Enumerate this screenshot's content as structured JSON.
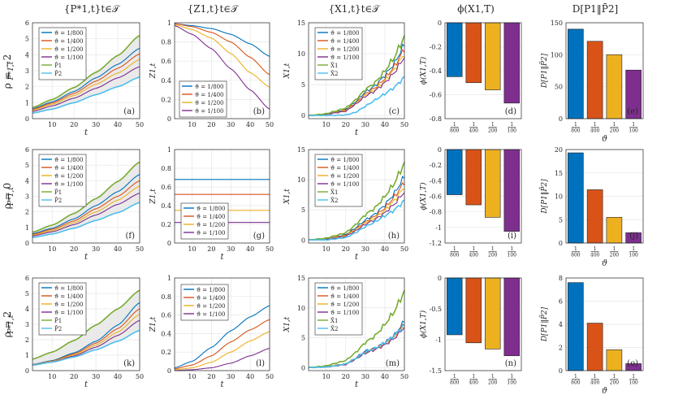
{
  "colors": {
    "blue": "#0072BD",
    "orange": "#D95319",
    "yellow": "#EDB120",
    "purple": "#7E2F8E",
    "green": "#77AC30",
    "cyan": "#4DBEEE",
    "axis": "#262626",
    "grid": "#e6e6e6",
    "band": "#e5e5e5"
  },
  "column_titles": [
    "{P*1,t}t∈𝒯",
    "{Z1,t}t∈𝒯",
    "{X1,t}t∈𝒯",
    "ϕ(X1,T)",
    "D[P1‖P̄2]"
  ],
  "row_labels": [
    "ρ = −2",
    "ρ = 0",
    "ρ = 2"
  ],
  "legends": {
    "p": [
      "ϑ = 1/800",
      "ϑ = 1/400",
      "ϑ = 1/200",
      "ϑ = 1/100",
      "P̄1",
      "P̄2"
    ],
    "z": [
      "ϑ = 1/800",
      "ϑ = 1/400",
      "ϑ = 1/200",
      "ϑ = 1/100"
    ],
    "x": [
      "ϑ = 1/800",
      "ϑ = 1/400",
      "ϑ = 1/200",
      "ϑ = 1/100",
      "X̄1",
      "X̄2"
    ]
  },
  "chart_data": [
    {
      "type": "line",
      "panel": "(a)",
      "title": "{P*1,t}t∈𝒯",
      "xlabel": "t",
      "ylabel": "P*1,t",
      "xlim": [
        1,
        50
      ],
      "ylim": [
        0,
        6
      ],
      "xticks": [
        10,
        20,
        30,
        40,
        50
      ],
      "yticks": [
        0,
        1,
        2,
        3,
        4,
        5,
        6
      ],
      "x": [
        1,
        10,
        20,
        30,
        40,
        50
      ],
      "series": [
        {
          "name": "ϑ = 1/800",
          "values": [
            0.62,
            1.05,
            1.7,
            2.55,
            3.4,
            4.4
          ]
        },
        {
          "name": "ϑ = 1/400",
          "values": [
            0.58,
            0.98,
            1.58,
            2.35,
            3.15,
            4.05
          ]
        },
        {
          "name": "ϑ = 1/200",
          "values": [
            0.52,
            0.9,
            1.45,
            2.15,
            2.85,
            3.7
          ]
        },
        {
          "name": "ϑ = 1/100",
          "values": [
            0.45,
            0.8,
            1.28,
            1.9,
            2.55,
            3.25
          ]
        },
        {
          "name": "P̄1",
          "values": [
            0.7,
            1.2,
            1.95,
            2.9,
            3.95,
            5.2
          ]
        },
        {
          "name": "P̄2",
          "values": [
            0.35,
            0.6,
            1.0,
            1.5,
            2.0,
            2.6
          ]
        }
      ]
    },
    {
      "type": "line",
      "panel": "(b)",
      "title": "{Z1,t}t∈𝒯",
      "xlabel": "",
      "ylabel": "Z1,t",
      "xlim": [
        1,
        50
      ],
      "ylim": [
        0,
        1
      ],
      "xticks": [
        10,
        20,
        30,
        40,
        50
      ],
      "yticks": [
        0,
        0.2,
        0.4,
        0.6,
        0.8,
        1
      ],
      "x": [
        1,
        10,
        20,
        30,
        40,
        50
      ],
      "series": [
        {
          "name": "ϑ = 1/800",
          "values": [
            0.99,
            0.97,
            0.94,
            0.88,
            0.78,
            0.65
          ]
        },
        {
          "name": "ϑ = 1/400",
          "values": [
            0.99,
            0.96,
            0.9,
            0.8,
            0.64,
            0.46
          ]
        },
        {
          "name": "ϑ = 1/200",
          "values": [
            0.98,
            0.93,
            0.84,
            0.68,
            0.48,
            0.33
          ]
        },
        {
          "name": "ϑ = 1/100",
          "values": [
            0.97,
            0.88,
            0.73,
            0.52,
            0.3,
            0.1
          ]
        }
      ]
    },
    {
      "type": "line",
      "panel": "(c)",
      "title": "{X1,t}t∈𝒯",
      "xlabel": "t",
      "ylabel": "X1,t",
      "xlim": [
        1,
        50
      ],
      "ylim": [
        -0.5,
        15
      ],
      "xticks": [
        10,
        20,
        30,
        40,
        50
      ],
      "yticks": [
        0,
        5,
        10,
        15
      ],
      "x": [
        1,
        10,
        20,
        25,
        30,
        35,
        40,
        45,
        50
      ],
      "series": [
        {
          "name": "ϑ = 1/800",
          "values": [
            0,
            0.2,
            1.0,
            2.2,
            3.8,
            4.8,
            6.5,
            8.5,
            11.5
          ]
        },
        {
          "name": "ϑ = 1/400",
          "values": [
            0,
            0.2,
            0.9,
            2.0,
            3.5,
            4.5,
            6.0,
            8.0,
            10.8
          ]
        },
        {
          "name": "ϑ = 1/200",
          "values": [
            0,
            0.2,
            0.8,
            1.9,
            3.3,
            4.2,
            5.6,
            7.5,
            10.0
          ]
        },
        {
          "name": "ϑ = 1/100",
          "values": [
            0,
            0.2,
            0.7,
            1.8,
            3.1,
            4.0,
            5.3,
            7.0,
            9.5
          ]
        },
        {
          "name": "X̄1",
          "values": [
            0,
            0.3,
            1.2,
            2.5,
            4.2,
            5.3,
            7.2,
            9.5,
            12.8
          ]
        },
        {
          "name": "X̄2",
          "values": [
            0,
            0.0,
            0.1,
            0.5,
            1.5,
            2.5,
            3.5,
            4.6,
            6.2
          ]
        }
      ]
    },
    {
      "type": "bar",
      "panel": "(d)",
      "title": "ϕ(X1,T)",
      "ylabel": "ϕ(X1,T)",
      "categories": [
        "1/800",
        "1/400",
        "1/200",
        "1/100"
      ],
      "values": [
        -0.45,
        -0.5,
        -0.56,
        -0.67
      ],
      "ylim": [
        -0.8,
        0
      ],
      "yticks": [
        0,
        -0.2,
        -0.4,
        -0.6,
        -0.8
      ]
    },
    {
      "type": "bar",
      "panel": "(e)",
      "title": "D[P1‖P̄2]",
      "xlabel": "ϑ",
      "ylabel": "D[P1‖P̄2]",
      "categories": [
        "1/800",
        "1/400",
        "1/200",
        "1/100"
      ],
      "values": [
        140,
        121,
        100,
        76
      ],
      "ylim": [
        0,
        150
      ],
      "yticks": [
        0,
        50,
        100,
        150
      ]
    },
    {
      "type": "line",
      "panel": "(f)",
      "xlabel": "t",
      "ylabel": "P*1,t",
      "xlim": [
        1,
        50
      ],
      "ylim": [
        0,
        6
      ],
      "xticks": [
        10,
        20,
        30,
        40,
        50
      ],
      "yticks": [
        0,
        1,
        2,
        3,
        4,
        5,
        6
      ],
      "x": [
        1,
        10,
        20,
        30,
        40,
        50
      ],
      "series": [
        {
          "name": "ϑ = 1/800",
          "values": [
            0.6,
            0.95,
            1.55,
            2.4,
            3.3,
            4.4
          ]
        },
        {
          "name": "ϑ = 1/400",
          "values": [
            0.55,
            0.88,
            1.42,
            2.2,
            3.0,
            4.0
          ]
        },
        {
          "name": "ϑ = 1/200",
          "values": [
            0.5,
            0.8,
            1.3,
            2.0,
            2.75,
            3.65
          ]
        },
        {
          "name": "ϑ = 1/100",
          "values": [
            0.45,
            0.72,
            1.18,
            1.8,
            2.48,
            3.2
          ]
        },
        {
          "name": "P̄1",
          "values": [
            0.7,
            1.15,
            1.9,
            2.85,
            3.95,
            5.2
          ]
        },
        {
          "name": "P̄2",
          "values": [
            0.35,
            0.58,
            0.95,
            1.45,
            1.95,
            2.6
          ]
        }
      ]
    },
    {
      "type": "line",
      "panel": "(g)",
      "xlabel": "t",
      "ylabel": "Z1,t",
      "xlim": [
        1,
        50
      ],
      "ylim": [
        0,
        1
      ],
      "xticks": [
        10,
        20,
        30,
        40,
        50
      ],
      "yticks": [
        0,
        0.2,
        0.4,
        0.6,
        0.8,
        1
      ],
      "x": [
        1,
        50
      ],
      "series": [
        {
          "name": "ϑ = 1/800",
          "values": [
            0.68,
            0.68
          ]
        },
        {
          "name": "ϑ = 1/400",
          "values": [
            0.52,
            0.52
          ]
        },
        {
          "name": "ϑ = 1/200",
          "values": [
            0.35,
            0.35
          ]
        },
        {
          "name": "ϑ = 1/100",
          "values": [
            0.22,
            0.22
          ]
        }
      ]
    },
    {
      "type": "line",
      "panel": "(h)",
      "xlabel": "t",
      "ylabel": "X1,t",
      "xlim": [
        1,
        50
      ],
      "ylim": [
        -0.5,
        15
      ],
      "xticks": [
        10,
        20,
        30,
        40,
        50
      ],
      "yticks": [
        0,
        5,
        10,
        15
      ],
      "x": [
        1,
        10,
        20,
        25,
        30,
        35,
        40,
        45,
        50
      ],
      "series": [
        {
          "name": "ϑ = 1/800",
          "values": [
            0,
            0.2,
            0.9,
            2.0,
            3.3,
            4.3,
            5.8,
            7.8,
            10.5
          ]
        },
        {
          "name": "ϑ = 1/400",
          "values": [
            0,
            0.2,
            0.8,
            1.8,
            3.0,
            4.0,
            5.3,
            7.2,
            9.6
          ]
        },
        {
          "name": "ϑ = 1/200",
          "values": [
            0,
            0.2,
            0.7,
            1.7,
            2.8,
            3.7,
            4.9,
            6.6,
            8.8
          ]
        },
        {
          "name": "ϑ = 1/100",
          "values": [
            0,
            0.1,
            0.6,
            1.5,
            2.6,
            3.4,
            4.5,
            6.0,
            8.0
          ]
        },
        {
          "name": "X̄1",
          "values": [
            0,
            0.3,
            1.2,
            2.5,
            4.2,
            5.3,
            7.2,
            9.5,
            12.8
          ]
        },
        {
          "name": "X̄2",
          "values": [
            0,
            0.0,
            0.4,
            1.2,
            2.2,
            3.0,
            4.0,
            5.0,
            6.5
          ]
        }
      ]
    },
    {
      "type": "bar",
      "panel": "(i)",
      "ylabel": "ϕ(X1,T)",
      "categories": [
        "1/800",
        "1/400",
        "1/200",
        "1/100"
      ],
      "values": [
        -0.58,
        -0.71,
        -0.87,
        -1.05
      ],
      "ylim": [
        -1.2,
        0
      ],
      "yticks": [
        0,
        -0.2,
        -0.4,
        -0.6,
        -0.8,
        -1,
        -1.2
      ]
    },
    {
      "type": "bar",
      "panel": "(j)",
      "xlabel": "ϑ",
      "ylabel": "D[P1‖P̄2]",
      "categories": [
        "1/800",
        "1/400",
        "1/200",
        "1/100"
      ],
      "values": [
        19.3,
        11.4,
        5.5,
        2.2
      ],
      "ylim": [
        0,
        20
      ],
      "yticks": [
        0,
        5,
        10,
        15,
        20
      ]
    },
    {
      "type": "line",
      "panel": "(k)",
      "xlabel": "t",
      "ylabel": "P*1,t",
      "xlim": [
        1,
        50
      ],
      "ylim": [
        0,
        6
      ],
      "xticks": [
        10,
        20,
        30,
        40,
        50
      ],
      "yticks": [
        0,
        1,
        2,
        3,
        4,
        5,
        6
      ],
      "x": [
        1,
        10,
        20,
        30,
        40,
        50
      ],
      "series": [
        {
          "name": "ϑ = 1/800",
          "values": [
            0.4,
            0.65,
            1.15,
            1.9,
            2.95,
            4.4
          ]
        },
        {
          "name": "ϑ = 1/400",
          "values": [
            0.38,
            0.62,
            1.08,
            1.78,
            2.72,
            4.0
          ]
        },
        {
          "name": "ϑ = 1/200",
          "values": [
            0.37,
            0.6,
            1.02,
            1.65,
            2.5,
            3.65
          ]
        },
        {
          "name": "ϑ = 1/100",
          "values": [
            0.36,
            0.57,
            0.95,
            1.52,
            2.28,
            3.25
          ]
        },
        {
          "name": "P̄1",
          "values": [
            0.75,
            1.2,
            1.95,
            2.95,
            4.0,
            5.2
          ]
        },
        {
          "name": "P̄2",
          "values": [
            0.35,
            0.55,
            0.88,
            1.35,
            1.9,
            2.6
          ]
        }
      ]
    },
    {
      "type": "line",
      "panel": "(l)",
      "xlabel": "t",
      "ylabel": "Z1,t",
      "xlim": [
        1,
        50
      ],
      "ylim": [
        0,
        1
      ],
      "xticks": [
        10,
        20,
        30,
        40,
        50
      ],
      "yticks": [
        0,
        0.2,
        0.4,
        0.6,
        0.8,
        1
      ],
      "x": [
        1,
        10,
        20,
        30,
        40,
        50
      ],
      "series": [
        {
          "name": "ϑ = 1/800",
          "values": [
            0.03,
            0.1,
            0.25,
            0.43,
            0.58,
            0.7
          ]
        },
        {
          "name": "ϑ = 1/400",
          "values": [
            0.02,
            0.06,
            0.16,
            0.31,
            0.44,
            0.55
          ]
        },
        {
          "name": "ϑ = 1/200",
          "values": [
            0.01,
            0.03,
            0.09,
            0.2,
            0.32,
            0.42
          ]
        },
        {
          "name": "ϑ = 1/100",
          "values": [
            0.0,
            0.01,
            0.03,
            0.08,
            0.16,
            0.24
          ]
        }
      ]
    },
    {
      "type": "line",
      "panel": "(m)",
      "xlabel": "t",
      "ylabel": "X1,t",
      "xlim": [
        1,
        50
      ],
      "ylim": [
        -0.5,
        15
      ],
      "xticks": [
        10,
        20,
        30,
        40,
        50
      ],
      "yticks": [
        0,
        5,
        10,
        15
      ],
      "x": [
        1,
        10,
        20,
        25,
        30,
        35,
        40,
        45,
        50
      ],
      "series": [
        {
          "name": "ϑ = 1/800",
          "values": [
            0,
            0.2,
            0.6,
            1.6,
            2.8,
            3.3,
            4.2,
            5.5,
            7.8
          ]
        },
        {
          "name": "ϑ = 1/400",
          "values": [
            0,
            0.2,
            0.6,
            1.5,
            2.6,
            3.2,
            4.0,
            5.3,
            7.4
          ]
        },
        {
          "name": "ϑ = 1/200",
          "values": [
            0,
            0.2,
            0.5,
            1.4,
            2.5,
            3.1,
            3.9,
            5.1,
            7.1
          ]
        },
        {
          "name": "ϑ = 1/100",
          "values": [
            0,
            0.1,
            0.5,
            1.4,
            2.4,
            3.0,
            3.8,
            4.9,
            6.8
          ]
        },
        {
          "name": "X̄1",
          "values": [
            0,
            0.3,
            1.2,
            2.5,
            4.2,
            5.3,
            7.2,
            9.5,
            12.8
          ]
        },
        {
          "name": "X̄2",
          "values": [
            0,
            0.1,
            0.6,
            1.5,
            2.6,
            3.2,
            4.2,
            5.4,
            7.2
          ]
        }
      ]
    },
    {
      "type": "bar",
      "panel": "(n)",
      "xlabel": "",
      "ylabel": "ϕ(X1,T)",
      "categories": [
        "1/800",
        "1/400",
        "1/200",
        "1/100"
      ],
      "values": [
        -0.92,
        -1.05,
        -1.15,
        -1.26
      ],
      "ylim": [
        -1.5,
        0
      ],
      "yticks": [
        0,
        -0.5,
        -1,
        -1.5
      ]
    },
    {
      "type": "bar",
      "panel": "(o)",
      "xlabel": "ϑ",
      "ylabel": "D[P1‖P̄2]",
      "categories": [
        "1/800",
        "1/400",
        "1/200",
        "1/100"
      ],
      "values": [
        7.6,
        4.1,
        1.8,
        0.6
      ],
      "ylim": [
        0,
        8
      ],
      "yticks": [
        0,
        2,
        4,
        6,
        8
      ]
    }
  ]
}
